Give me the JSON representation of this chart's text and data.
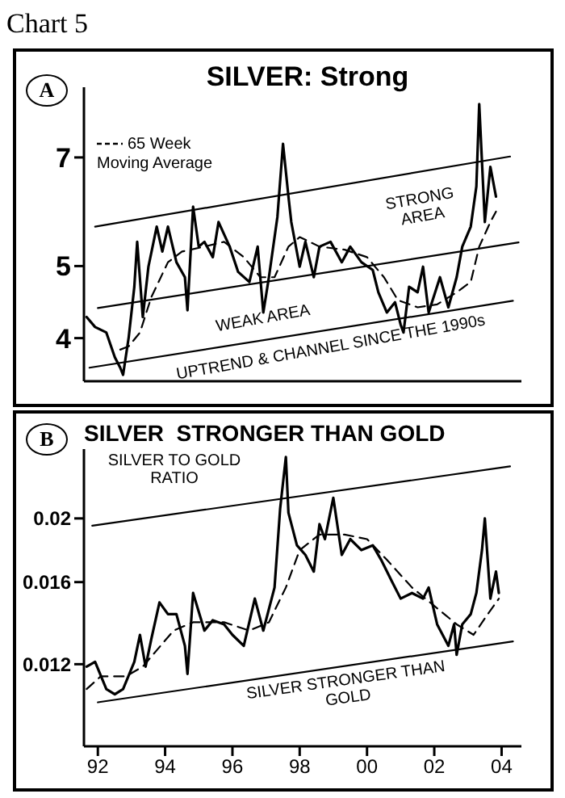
{
  "chart_data": [
    {
      "type": "line",
      "title": "SILVER: Strong",
      "annotations": [
        "Chart 5",
        "A",
        "STRONG AREA",
        "WEAK AREA",
        "UPTREND & CHANNEL SINCE THE 1990s"
      ],
      "xlim": [
        "1992-02",
        "2005-02"
      ],
      "ylim": [
        3.5,
        8.7
      ],
      "yticks": [
        4,
        5,
        7
      ],
      "log": "y",
      "tick_labels": "y",
      "grid": false,
      "legend": "top left",
      "marker": "none",
      "series": [
        {
          "color": "#000000",
          "line_style": "solid",
          "x": [
            "1992-03",
            "1992-06",
            "1992-10",
            "1993-01",
            "1993-03",
            "1993-04",
            "1993-06",
            "1993-08",
            "1993-09",
            "1993-11",
            "1994-01",
            "1994-04",
            "1994-06",
            "1994-08",
            "1994-11",
            "1995-02",
            "1995-03",
            "1995-05",
            "1995-07",
            "1995-09",
            "1995-12",
            "1996-02",
            "1996-06",
            "1996-09",
            "1997-01",
            "1997-04",
            "1997-06",
            "1997-08",
            "1997-11",
            "1998-01",
            "1998-03",
            "1998-04",
            "1998-07",
            "1998-09",
            "1998-12",
            "1999-02",
            "1999-06",
            "1999-10",
            "2000-01",
            "2000-05",
            "2000-09",
            "2000-11",
            "2001-02",
            "2001-05",
            "2001-07",
            "2001-08",
            "2001-10",
            "2002-01",
            "2002-03",
            "2002-05",
            "2002-09",
            "2002-12",
            "2003-03",
            "2003-05",
            "2003-08",
            "2003-10",
            "2003-11",
            "2004-01",
            "2004-03",
            "2004-05"
          ],
          "values": [
            4.27,
            4.14,
            4.07,
            3.77,
            3.65,
            3.57,
            4.01,
            4.69,
            5.39,
            4.27,
            4.99,
            5.65,
            5.23,
            5.65,
            5.06,
            4.83,
            4.36,
            6.01,
            5.31,
            5.39,
            5.14,
            5.73,
            5.31,
            4.91,
            4.76,
            5.31,
            4.33,
            4.83,
            5.82,
            7.3,
            6.2,
            5.73,
            4.99,
            5.39,
            4.83,
            5.31,
            5.39,
            5.06,
            5.31,
            5.06,
            4.94,
            4.61,
            4.33,
            4.47,
            4.17,
            4.07,
            4.69,
            4.61,
            4.99,
            4.33,
            4.83,
            4.4,
            4.83,
            5.31,
            5.65,
            6.4,
            8.26,
            5.73,
            6.8,
            6.2
          ]
        },
        {
          "name": "65 Week Moving Average",
          "color": "#000000",
          "line_style": "dashed",
          "x": [
            "1993-03",
            "1993-06",
            "1993-10",
            "1994-02",
            "1994-08",
            "1995-01",
            "1995-09",
            "1996-04",
            "1996-11",
            "1997-05",
            "1997-10",
            "1998-03",
            "1998-07",
            "1999-02",
            "1999-11",
            "2000-07",
            "2001-01",
            "2001-06",
            "2002-01",
            "2002-08",
            "2003-03",
            "2003-08",
            "2003-11",
            "2004-03",
            "2004-05"
          ],
          "values": [
            3.86,
            3.9,
            4.07,
            4.54,
            5.06,
            5.23,
            5.31,
            5.39,
            5.14,
            4.83,
            4.83,
            5.31,
            5.47,
            5.31,
            5.26,
            5.14,
            4.83,
            4.5,
            4.4,
            4.44,
            4.61,
            4.76,
            5.31,
            5.73,
            5.92
          ]
        },
        {
          "color": "#000000",
          "line_style": "solid",
          "x": [
            "1992-06",
            "2004-10"
          ],
          "values": [
            5.65,
            7.02
          ]
        },
        {
          "color": "#000000",
          "line_style": "solid",
          "x": [
            "1992-07",
            "2005-01"
          ],
          "values": [
            4.39,
            5.38
          ]
        },
        {
          "color": "#000000",
          "line_style": "solid",
          "x": [
            "1992-04",
            "2004-11"
          ],
          "values": [
            3.65,
            4.49
          ]
        }
      ]
    },
    {
      "type": "line",
      "title": "SILVER  STRONGER THAN GOLD",
      "annotations": [
        "B",
        "SILVER TO GOLD RATIO",
        "SILVER STRONGER THAN GOLD"
      ],
      "xlim": [
        "1992-02",
        "2005-02"
      ],
      "xticks": [
        {
          "value": "1992-07",
          "label": "92"
        },
        {
          "value": "1994-07",
          "label": "94"
        },
        {
          "value": "1996-07",
          "label": "96"
        },
        {
          "value": "1998-07",
          "label": "98"
        },
        {
          "value": "2000-07",
          "label": "00"
        },
        {
          "value": "2002-07",
          "label": "02"
        },
        {
          "value": "2004-07",
          "label": "04"
        }
      ],
      "ylim": [
        0.009,
        0.0255
      ],
      "yticks": [
        0.012,
        0.016,
        0.02
      ],
      "log": "y",
      "grid": false,
      "legend": false,
      "marker": "none",
      "series": [
        {
          "color": "#000000",
          "line_style": "solid",
          "x": [
            "1992-03",
            "1992-06",
            "1992-10",
            "1993-01",
            "1993-04",
            "1993-08",
            "1993-10",
            "1993-12",
            "1994-02",
            "1994-05",
            "1994-08",
            "1994-11",
            "1995-02",
            "1995-03",
            "1995-05",
            "1995-09",
            "1995-12",
            "1996-04",
            "1996-07",
            "1996-11",
            "1997-03",
            "1997-06",
            "1997-10",
            "1997-12",
            "1998-02",
            "1998-03",
            "1998-06",
            "1998-09",
            "1998-12",
            "1999-02",
            "1999-04",
            "1999-07",
            "1999-10",
            "2000-01",
            "2000-05",
            "2000-09",
            "2000-12",
            "2001-04",
            "2001-07",
            "2001-11",
            "2002-03",
            "2002-05",
            "2002-08",
            "2002-12",
            "2003-02",
            "2003-03",
            "2003-05",
            "2003-08",
            "2003-10",
            "2003-12",
            "2004-01",
            "2004-03",
            "2004-05",
            "2004-06"
          ],
          "values": [
            0.0119,
            0.0121,
            0.011,
            0.0108,
            0.011,
            0.0121,
            0.0133,
            0.0119,
            0.0131,
            0.0149,
            0.0143,
            0.0143,
            0.0128,
            0.0116,
            0.0154,
            0.0135,
            0.014,
            0.0138,
            0.0133,
            0.0128,
            0.0151,
            0.0135,
            0.0157,
            0.0207,
            0.0248,
            0.0204,
            0.0182,
            0.0176,
            0.0166,
            0.0196,
            0.0186,
            0.0215,
            0.0176,
            0.0186,
            0.0179,
            0.0182,
            0.0173,
            0.016,
            0.0151,
            0.0154,
            0.0151,
            0.0157,
            0.0138,
            0.0128,
            0.0138,
            0.0124,
            0.0138,
            0.0143,
            0.0154,
            0.0179,
            0.02,
            0.0151,
            0.0166,
            0.0154
          ]
        },
        {
          "color": "#000000",
          "line_style": "dashed",
          "x": [
            "1992-03",
            "1992-08",
            "1993-05",
            "1993-11",
            "1994-04",
            "1994-10",
            "1995-05",
            "1996-04",
            "1997-01",
            "1997-08",
            "1998-02",
            "1998-07",
            "1999-02",
            "1999-11",
            "2000-07",
            "2001-02",
            "2001-11",
            "2002-08",
            "2003-03",
            "2003-09",
            "2004-02",
            "2004-06"
          ],
          "values": [
            0.011,
            0.0115,
            0.0115,
            0.0119,
            0.0126,
            0.0135,
            0.0139,
            0.0139,
            0.0135,
            0.0139,
            0.0157,
            0.0179,
            0.0189,
            0.0189,
            0.0186,
            0.0173,
            0.0157,
            0.0146,
            0.0138,
            0.0133,
            0.0143,
            0.0151
          ]
        },
        {
          "color": "#000000",
          "line_style": "solid",
          "x": [
            "1992-05",
            "2004-10"
          ],
          "values": [
            0.0195,
            0.024
          ]
        },
        {
          "color": "#000000",
          "line_style": "solid",
          "x": [
            "1992-07",
            "2004-11"
          ],
          "values": [
            0.0105,
            0.013
          ]
        }
      ]
    }
  ]
}
